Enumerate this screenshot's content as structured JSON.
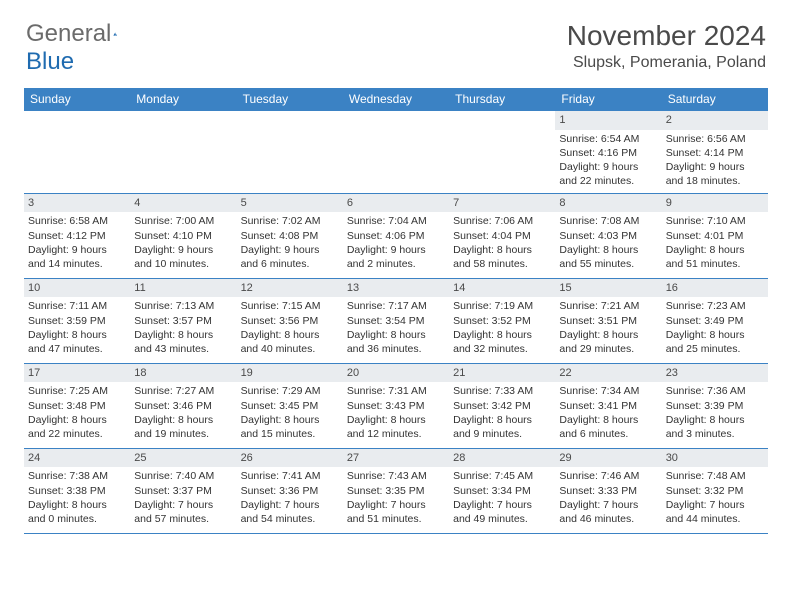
{
  "brand": {
    "part1": "General",
    "part2": "Blue",
    "accent": "#1f6bb0"
  },
  "title": "November 2024",
  "location": "Slupsk, Pomerania, Poland",
  "colors": {
    "header_bg": "#3b82c4",
    "header_text": "#ffffff",
    "daynum_bg": "#e9ecef",
    "border": "#3b82c4",
    "text": "#333333",
    "title_text": "#4a4a4a"
  },
  "day_headers": [
    "Sunday",
    "Monday",
    "Tuesday",
    "Wednesday",
    "Thursday",
    "Friday",
    "Saturday"
  ],
  "weeks": [
    [
      {
        "n": "",
        "sr": "",
        "ss": "",
        "dl": ""
      },
      {
        "n": "",
        "sr": "",
        "ss": "",
        "dl": ""
      },
      {
        "n": "",
        "sr": "",
        "ss": "",
        "dl": ""
      },
      {
        "n": "",
        "sr": "",
        "ss": "",
        "dl": ""
      },
      {
        "n": "",
        "sr": "",
        "ss": "",
        "dl": ""
      },
      {
        "n": "1",
        "sr": "Sunrise: 6:54 AM",
        "ss": "Sunset: 4:16 PM",
        "dl": "Daylight: 9 hours and 22 minutes."
      },
      {
        "n": "2",
        "sr": "Sunrise: 6:56 AM",
        "ss": "Sunset: 4:14 PM",
        "dl": "Daylight: 9 hours and 18 minutes."
      }
    ],
    [
      {
        "n": "3",
        "sr": "Sunrise: 6:58 AM",
        "ss": "Sunset: 4:12 PM",
        "dl": "Daylight: 9 hours and 14 minutes."
      },
      {
        "n": "4",
        "sr": "Sunrise: 7:00 AM",
        "ss": "Sunset: 4:10 PM",
        "dl": "Daylight: 9 hours and 10 minutes."
      },
      {
        "n": "5",
        "sr": "Sunrise: 7:02 AM",
        "ss": "Sunset: 4:08 PM",
        "dl": "Daylight: 9 hours and 6 minutes."
      },
      {
        "n": "6",
        "sr": "Sunrise: 7:04 AM",
        "ss": "Sunset: 4:06 PM",
        "dl": "Daylight: 9 hours and 2 minutes."
      },
      {
        "n": "7",
        "sr": "Sunrise: 7:06 AM",
        "ss": "Sunset: 4:04 PM",
        "dl": "Daylight: 8 hours and 58 minutes."
      },
      {
        "n": "8",
        "sr": "Sunrise: 7:08 AM",
        "ss": "Sunset: 4:03 PM",
        "dl": "Daylight: 8 hours and 55 minutes."
      },
      {
        "n": "9",
        "sr": "Sunrise: 7:10 AM",
        "ss": "Sunset: 4:01 PM",
        "dl": "Daylight: 8 hours and 51 minutes."
      }
    ],
    [
      {
        "n": "10",
        "sr": "Sunrise: 7:11 AM",
        "ss": "Sunset: 3:59 PM",
        "dl": "Daylight: 8 hours and 47 minutes."
      },
      {
        "n": "11",
        "sr": "Sunrise: 7:13 AM",
        "ss": "Sunset: 3:57 PM",
        "dl": "Daylight: 8 hours and 43 minutes."
      },
      {
        "n": "12",
        "sr": "Sunrise: 7:15 AM",
        "ss": "Sunset: 3:56 PM",
        "dl": "Daylight: 8 hours and 40 minutes."
      },
      {
        "n": "13",
        "sr": "Sunrise: 7:17 AM",
        "ss": "Sunset: 3:54 PM",
        "dl": "Daylight: 8 hours and 36 minutes."
      },
      {
        "n": "14",
        "sr": "Sunrise: 7:19 AM",
        "ss": "Sunset: 3:52 PM",
        "dl": "Daylight: 8 hours and 32 minutes."
      },
      {
        "n": "15",
        "sr": "Sunrise: 7:21 AM",
        "ss": "Sunset: 3:51 PM",
        "dl": "Daylight: 8 hours and 29 minutes."
      },
      {
        "n": "16",
        "sr": "Sunrise: 7:23 AM",
        "ss": "Sunset: 3:49 PM",
        "dl": "Daylight: 8 hours and 25 minutes."
      }
    ],
    [
      {
        "n": "17",
        "sr": "Sunrise: 7:25 AM",
        "ss": "Sunset: 3:48 PM",
        "dl": "Daylight: 8 hours and 22 minutes."
      },
      {
        "n": "18",
        "sr": "Sunrise: 7:27 AM",
        "ss": "Sunset: 3:46 PM",
        "dl": "Daylight: 8 hours and 19 minutes."
      },
      {
        "n": "19",
        "sr": "Sunrise: 7:29 AM",
        "ss": "Sunset: 3:45 PM",
        "dl": "Daylight: 8 hours and 15 minutes."
      },
      {
        "n": "20",
        "sr": "Sunrise: 7:31 AM",
        "ss": "Sunset: 3:43 PM",
        "dl": "Daylight: 8 hours and 12 minutes."
      },
      {
        "n": "21",
        "sr": "Sunrise: 7:33 AM",
        "ss": "Sunset: 3:42 PM",
        "dl": "Daylight: 8 hours and 9 minutes."
      },
      {
        "n": "22",
        "sr": "Sunrise: 7:34 AM",
        "ss": "Sunset: 3:41 PM",
        "dl": "Daylight: 8 hours and 6 minutes."
      },
      {
        "n": "23",
        "sr": "Sunrise: 7:36 AM",
        "ss": "Sunset: 3:39 PM",
        "dl": "Daylight: 8 hours and 3 minutes."
      }
    ],
    [
      {
        "n": "24",
        "sr": "Sunrise: 7:38 AM",
        "ss": "Sunset: 3:38 PM",
        "dl": "Daylight: 8 hours and 0 minutes."
      },
      {
        "n": "25",
        "sr": "Sunrise: 7:40 AM",
        "ss": "Sunset: 3:37 PM",
        "dl": "Daylight: 7 hours and 57 minutes."
      },
      {
        "n": "26",
        "sr": "Sunrise: 7:41 AM",
        "ss": "Sunset: 3:36 PM",
        "dl": "Daylight: 7 hours and 54 minutes."
      },
      {
        "n": "27",
        "sr": "Sunrise: 7:43 AM",
        "ss": "Sunset: 3:35 PM",
        "dl": "Daylight: 7 hours and 51 minutes."
      },
      {
        "n": "28",
        "sr": "Sunrise: 7:45 AM",
        "ss": "Sunset: 3:34 PM",
        "dl": "Daylight: 7 hours and 49 minutes."
      },
      {
        "n": "29",
        "sr": "Sunrise: 7:46 AM",
        "ss": "Sunset: 3:33 PM",
        "dl": "Daylight: 7 hours and 46 minutes."
      },
      {
        "n": "30",
        "sr": "Sunrise: 7:48 AM",
        "ss": "Sunset: 3:32 PM",
        "dl": "Daylight: 7 hours and 44 minutes."
      }
    ]
  ]
}
